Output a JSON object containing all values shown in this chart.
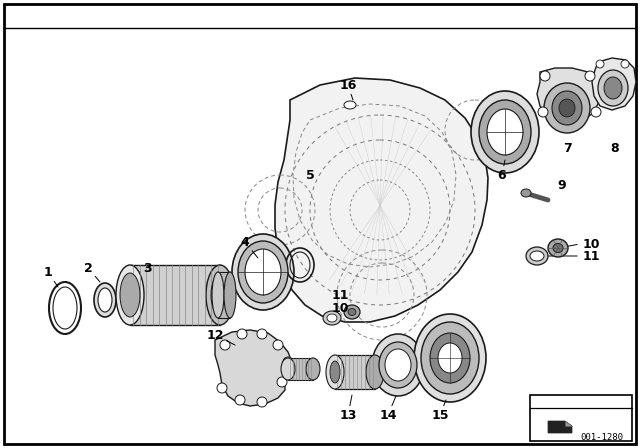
{
  "bg_color": "#ffffff",
  "diagram_id": "001-1280",
  "text_color": "#000000",
  "lc": "#1a1a1a",
  "housing_fill": "#f8f8f8",
  "gray_light": "#e0e0e0",
  "gray_mid": "#aaaaaa",
  "gray_dark": "#666666",
  "bearing_fill": "#c8c8c8",
  "knurl_fill": "#888888"
}
